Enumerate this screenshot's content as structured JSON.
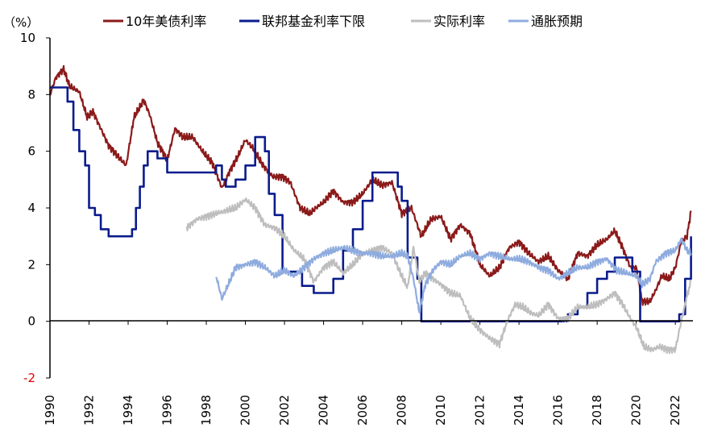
{
  "chart_data": {
    "type": "line",
    "unit_label": "（%）",
    "xlim": [
      1990,
      2022.9
    ],
    "ylim": [
      -2,
      10
    ],
    "x_ticks": [
      "1990",
      "1992",
      "1994",
      "1996",
      "1998",
      "2000",
      "2002",
      "2004",
      "2006",
      "2008",
      "2010",
      "2012",
      "2014",
      "2016",
      "2018",
      "2020",
      "2022"
    ],
    "y_ticks": [
      "-2",
      "0",
      "2",
      "4",
      "6",
      "8",
      "10"
    ],
    "legend_position": "top",
    "series": [
      {
        "name": "10年美债利率",
        "color": "#8B1A1A",
        "x": [
          1990.0,
          1990.3,
          1990.7,
          1991.0,
          1991.5,
          1991.9,
          1992.2,
          1992.6,
          1993.0,
          1993.5,
          1993.9,
          1994.3,
          1994.8,
          1995.1,
          1995.5,
          1996.0,
          1996.4,
          1996.8,
          1997.3,
          1997.8,
          1998.3,
          1998.8,
          1999.2,
          1999.6,
          2000.0,
          2000.4,
          2000.9,
          2001.4,
          2001.9,
          2002.3,
          2002.8,
          2003.3,
          2003.6,
          2004.0,
          2004.5,
          2005.0,
          2005.5,
          2006.0,
          2006.5,
          2007.0,
          2007.5,
          2008.0,
          2008.5,
          2009.0,
          2009.5,
          2010.0,
          2010.5,
          2011.0,
          2011.5,
          2012.0,
          2012.5,
          2013.0,
          2013.5,
          2014.0,
          2014.5,
          2015.0,
          2015.5,
          2016.0,
          2016.5,
          2017.0,
          2017.5,
          2018.0,
          2018.5,
          2018.9,
          2019.3,
          2019.7,
          2020.0,
          2020.3,
          2020.7,
          2021.0,
          2021.3,
          2021.7,
          2022.0,
          2022.3,
          2022.6,
          2022.8
        ],
        "values": [
          8.0,
          8.6,
          8.9,
          8.3,
          8.1,
          7.2,
          7.4,
          6.8,
          6.2,
          5.8,
          5.5,
          7.2,
          7.8,
          7.3,
          6.3,
          5.7,
          6.8,
          6.5,
          6.5,
          6.0,
          5.6,
          4.7,
          5.3,
          5.8,
          6.4,
          6.1,
          5.5,
          5.1,
          5.1,
          4.9,
          4.0,
          3.8,
          4.0,
          4.2,
          4.6,
          4.2,
          4.2,
          4.5,
          5.0,
          4.8,
          4.9,
          3.8,
          4.0,
          3.0,
          3.6,
          3.7,
          2.9,
          3.4,
          3.1,
          2.0,
          1.6,
          1.9,
          2.6,
          2.8,
          2.4,
          2.1,
          2.3,
          1.8,
          1.5,
          2.4,
          2.3,
          2.7,
          2.9,
          3.2,
          2.6,
          1.9,
          1.9,
          0.7,
          0.7,
          1.1,
          1.6,
          1.5,
          1.9,
          2.8,
          3.0,
          3.9
        ]
      },
      {
        "name": "联邦基金利率下限",
        "color": "#0A1C8C",
        "x": [
          1990.0,
          1990.5,
          1990.9,
          1991.2,
          1991.5,
          1991.8,
          1992.0,
          1992.3,
          1992.6,
          1993.0,
          1993.5,
          1994.0,
          1994.2,
          1994.4,
          1994.6,
          1994.8,
          1995.0,
          1995.5,
          1996.0,
          1997.0,
          1998.5,
          1998.8,
          1999.0,
          1999.5,
          2000.0,
          2000.5,
          2001.0,
          2001.2,
          2001.5,
          2001.9,
          2002.9,
          2003.5,
          2004.0,
          2004.5,
          2005.0,
          2005.5,
          2006.0,
          2006.5,
          2007.6,
          2007.8,
          2008.0,
          2008.3,
          2008.8,
          2009.0,
          2015.9,
          2016.5,
          2017.0,
          2017.5,
          2018.0,
          2018.5,
          2018.9,
          2019.5,
          2019.8,
          2020.2,
          2022.0,
          2022.2,
          2022.5,
          2022.8
        ],
        "values": [
          8.25,
          8.25,
          7.75,
          6.75,
          6.0,
          5.5,
          4.0,
          3.75,
          3.25,
          3.0,
          3.0,
          3.0,
          3.25,
          4.0,
          4.75,
          5.5,
          6.0,
          5.75,
          5.25,
          5.25,
          5.5,
          5.0,
          4.75,
          5.0,
          5.5,
          6.5,
          6.0,
          4.5,
          3.75,
          1.75,
          1.25,
          1.0,
          1.0,
          1.5,
          2.5,
          3.25,
          4.25,
          5.25,
          5.25,
          4.75,
          4.25,
          2.25,
          1.5,
          0.0,
          0.0,
          0.25,
          0.5,
          1.0,
          1.5,
          1.75,
          2.25,
          2.25,
          1.75,
          0.0,
          0.0,
          0.25,
          1.5,
          3.0
        ]
      },
      {
        "name": "实际利率",
        "color": "#BEBEBE",
        "x": [
          1997.0,
          1997.5,
          1998.0,
          1998.5,
          1999.0,
          1999.5,
          2000.0,
          2000.5,
          2001.0,
          2001.5,
          2002.0,
          2002.5,
          2003.0,
          2003.5,
          2004.0,
          2004.5,
          2005.0,
          2005.5,
          2006.0,
          2006.5,
          2007.0,
          2007.5,
          2008.0,
          2008.3,
          2008.6,
          2008.9,
          2009.2,
          2009.6,
          2010.0,
          2010.5,
          2011.0,
          2011.5,
          2012.0,
          2012.5,
          2013.0,
          2013.4,
          2013.8,
          2014.2,
          2014.6,
          2015.0,
          2015.5,
          2016.0,
          2016.5,
          2017.0,
          2017.5,
          2018.0,
          2018.5,
          2018.9,
          2019.3,
          2019.7,
          2020.0,
          2020.4,
          2020.8,
          2021.2,
          2021.6,
          2022.0,
          2022.3,
          2022.6,
          2022.8
        ],
        "values": [
          3.3,
          3.6,
          3.7,
          3.8,
          3.9,
          4.0,
          4.3,
          4.0,
          3.4,
          3.3,
          3.0,
          2.5,
          2.2,
          1.4,
          1.9,
          2.1,
          1.7,
          2.0,
          2.4,
          2.5,
          2.6,
          2.4,
          1.6,
          1.2,
          2.6,
          1.4,
          1.7,
          1.5,
          1.3,
          1.0,
          0.9,
          0.1,
          -0.3,
          -0.6,
          -0.8,
          0.0,
          0.6,
          0.5,
          0.3,
          0.2,
          0.6,
          0.1,
          0.1,
          0.5,
          0.5,
          0.6,
          0.8,
          1.0,
          0.6,
          0.1,
          -0.2,
          -0.9,
          -1.0,
          -0.9,
          -1.0,
          -1.0,
          0.0,
          0.9,
          1.4
        ]
      },
      {
        "name": "通胀预期",
        "color": "#8FACDF",
        "x": [
          1998.5,
          1998.8,
          1999.0,
          1999.5,
          2000.0,
          2000.5,
          2001.0,
          2001.5,
          2002.0,
          2002.5,
          2003.0,
          2003.5,
          2004.0,
          2004.5,
          2005.0,
          2005.5,
          2006.0,
          2006.5,
          2007.0,
          2007.5,
          2008.0,
          2008.3,
          2008.6,
          2008.9,
          2009.2,
          2009.6,
          2010.0,
          2010.5,
          2011.0,
          2011.5,
          2012.0,
          2012.5,
          2013.0,
          2013.5,
          2014.0,
          2014.5,
          2015.0,
          2015.5,
          2016.0,
          2016.5,
          2017.0,
          2017.5,
          2018.0,
          2018.5,
          2019.0,
          2019.5,
          2020.0,
          2020.3,
          2020.7,
          2021.0,
          2021.5,
          2022.0,
          2022.3,
          2022.6,
          2022.8
        ],
        "values": [
          1.6,
          0.8,
          1.1,
          1.9,
          2.0,
          2.1,
          1.9,
          1.6,
          1.8,
          1.6,
          1.9,
          2.2,
          2.4,
          2.5,
          2.6,
          2.5,
          2.4,
          2.4,
          2.3,
          2.3,
          2.4,
          2.3,
          1.5,
          0.3,
          1.3,
          1.8,
          2.1,
          2.0,
          2.3,
          2.4,
          2.2,
          2.4,
          2.3,
          2.2,
          2.2,
          2.1,
          1.9,
          1.8,
          1.5,
          1.7,
          1.9,
          1.9,
          2.1,
          2.2,
          1.8,
          1.7,
          1.6,
          1.3,
          1.5,
          2.1,
          2.4,
          2.5,
          2.9,
          2.5,
          2.4
        ]
      }
    ]
  }
}
